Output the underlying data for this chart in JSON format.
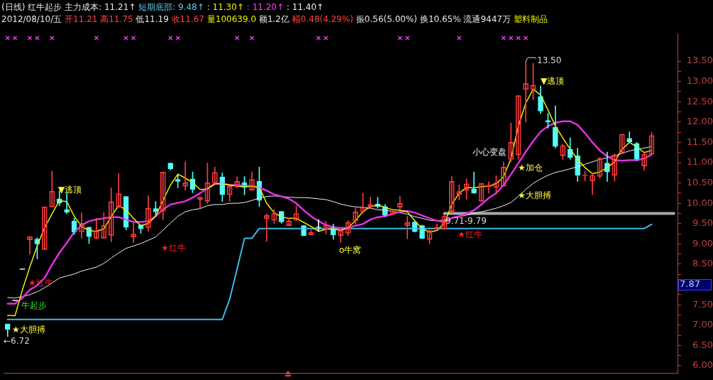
{
  "chart_data": {
    "type": "candlestick",
    "title": "(日线) 红牛起步 主力成本: 11.21↑ 短期底部: 9.48↑ : 11.30↑ : 11.20↑ : 11.40↑",
    "subtitle": "2012/08/10/五 开11.21 高11.75 低11.19 收11.67 量100639.0 额1.2亿 幅0.48(4.29%) 振0.56(5.00%) 换10.65% 流通9447万 塑料制品",
    "categories": [
      null,
      null,
      null,
      null,
      null,
      null,
      null,
      null,
      null,
      null,
      null,
      null,
      null,
      null,
      null,
      null,
      null,
      null,
      null,
      null,
      null,
      null,
      null,
      null,
      null,
      null,
      null,
      null,
      null,
      null,
      null,
      null,
      null,
      null,
      null,
      null,
      null,
      null,
      null,
      null,
      null,
      null,
      null,
      null,
      null,
      null,
      null,
      null,
      null,
      null,
      null,
      null,
      null,
      null,
      null,
      null,
      null,
      null,
      null,
      null,
      null,
      null,
      null,
      null,
      null,
      null,
      null,
      null,
      null,
      null,
      null,
      null,
      null,
      null,
      null,
      null,
      null,
      null,
      null,
      null,
      null,
      null,
      null,
      null,
      null,
      null,
      null,
      null,
      null,
      null,
      null
    ],
    "ohlc": [
      [
        7.03,
        7.03,
        6.72,
        6.89
      ],
      [
        7.6,
        7.6,
        7.6,
        7.6
      ],
      [
        8.37,
        8.37,
        8.37,
        8.37
      ],
      [
        9.1,
        9.18,
        8.75,
        9.18
      ],
      [
        9.12,
        9.15,
        8.63,
        9.0
      ],
      [
        8.86,
        9.91,
        8.86,
        9.91
      ],
      [
        9.91,
        10.79,
        9.91,
        10.3
      ],
      [
        10.11,
        10.31,
        9.94,
        10.0
      ],
      [
        9.84,
        10.25,
        9.74,
        9.78
      ],
      [
        9.56,
        9.63,
        9.23,
        9.29
      ],
      [
        9.3,
        9.77,
        9.14,
        9.51
      ],
      [
        9.41,
        9.41,
        9.01,
        9.18
      ],
      [
        9.14,
        9.63,
        9.12,
        9.31
      ],
      [
        9.14,
        9.77,
        9.14,
        9.46
      ],
      [
        9.21,
        10.38,
        9.05,
        10.04
      ],
      [
        9.9,
        10.73,
        9.9,
        10.24
      ],
      [
        10.17,
        10.17,
        9.35,
        9.41
      ],
      [
        9.17,
        9.51,
        9.03,
        9.24
      ],
      [
        9.47,
        9.47,
        9.26,
        9.37
      ],
      [
        9.4,
        10.19,
        9.31,
        9.88
      ],
      [
        9.87,
        10.04,
        9.68,
        9.79
      ],
      [
        9.81,
        10.77,
        9.6,
        10.77
      ],
      [
        10.99,
        10.99,
        10.82,
        10.85
      ],
      [
        10.59,
        10.71,
        10.38,
        10.54
      ],
      [
        10.42,
        11.02,
        10.32,
        10.51
      ],
      [
        10.6,
        10.77,
        10.26,
        10.34
      ],
      [
        10.09,
        10.15,
        9.88,
        10.15
      ],
      [
        10.05,
        10.99,
        9.99,
        10.51
      ],
      [
        10.49,
        10.89,
        10.49,
        10.76
      ],
      [
        10.65,
        10.75,
        10.04,
        10.21
      ],
      [
        10.21,
        10.42,
        10.05,
        10.42
      ],
      [
        10.42,
        10.65,
        10.38,
        10.54
      ],
      [
        10.51,
        10.66,
        10.21,
        10.39
      ],
      [
        10.32,
        10.77,
        10.32,
        10.59
      ],
      [
        10.54,
        10.89,
        9.92,
        10.07
      ],
      [
        9.62,
        9.74,
        9.06,
        9.7
      ],
      [
        9.58,
        9.85,
        9.5,
        9.75
      ],
      [
        9.8,
        9.8,
        9.51,
        9.54
      ],
      [
        9.45,
        9.63,
        9.45,
        9.57
      ],
      [
        9.58,
        9.94,
        9.57,
        9.75
      ],
      [
        9.45,
        9.45,
        9.2,
        9.2
      ],
      [
        9.22,
        9.34,
        9.22,
        9.28
      ],
      [
        9.4,
        9.6,
        9.31,
        9.4
      ],
      [
        9.36,
        9.56,
        9.24,
        9.46
      ],
      [
        9.43,
        9.49,
        9.11,
        9.22
      ],
      [
        9.2,
        9.37,
        9.03,
        9.33
      ],
      [
        9.26,
        9.58,
        9.2,
        9.53
      ],
      [
        9.57,
        9.88,
        9.49,
        9.79
      ],
      [
        9.79,
        10.25,
        9.74,
        9.9
      ],
      [
        9.92,
        10.15,
        9.88,
        9.97
      ],
      [
        9.98,
        10.15,
        9.88,
        9.92
      ],
      [
        9.92,
        9.97,
        9.68,
        9.7
      ],
      [
        9.73,
        9.85,
        9.73,
        9.81
      ],
      [
        9.9,
        10.17,
        9.85,
        10.0
      ],
      [
        9.45,
        9.68,
        9.12,
        9.53
      ],
      [
        9.54,
        9.57,
        9.29,
        9.3
      ],
      [
        9.45,
        9.46,
        9.13,
        9.13
      ],
      [
        9.11,
        9.34,
        9.0,
        9.33
      ],
      [
        9.37,
        9.49,
        9.37,
        9.41
      ],
      [
        9.37,
        9.72,
        9.35,
        9.68
      ],
      [
        9.8,
        10.66,
        9.77,
        10.54
      ],
      [
        10.22,
        10.45,
        10.08,
        10.29
      ],
      [
        10.32,
        10.6,
        10.09,
        10.48
      ],
      [
        10.35,
        10.77,
        10.24,
        10.25
      ],
      [
        10.05,
        10.49,
        10.05,
        10.49
      ],
      [
        10.41,
        10.53,
        10.25,
        10.45
      ],
      [
        10.39,
        10.68,
        10.22,
        10.51
      ],
      [
        10.42,
        11.02,
        10.42,
        10.89
      ],
      [
        11.08,
        11.98,
        11.02,
        11.5
      ],
      [
        11.19,
        12.65,
        11.08,
        12.65
      ],
      [
        12.8,
        13.5,
        12.0,
        12.95
      ],
      [
        12.8,
        13.45,
        12.55,
        12.91
      ],
      [
        12.63,
        12.89,
        12.21,
        12.27
      ],
      [
        12.04,
        12.21,
        11.85,
        12.0
      ],
      [
        11.87,
        12.4,
        11.36,
        11.4
      ],
      [
        11.17,
        11.46,
        11.08,
        11.42
      ],
      [
        11.33,
        11.61,
        11.08,
        11.13
      ],
      [
        11.17,
        11.36,
        10.54,
        10.69
      ],
      [
        10.68,
        10.79,
        10.55,
        10.69
      ],
      [
        10.55,
        10.73,
        10.21,
        10.69
      ],
      [
        10.66,
        11.13,
        10.62,
        11.11
      ],
      [
        10.99,
        11.26,
        10.54,
        10.77
      ],
      [
        10.69,
        11.22,
        10.54,
        11.19
      ],
      [
        11.25,
        11.7,
        11.25,
        11.7
      ],
      [
        11.6,
        11.76,
        11.49,
        11.51
      ],
      [
        11.47,
        11.5,
        11.05,
        11.08
      ],
      [
        10.92,
        11.23,
        10.81,
        11.21
      ],
      [
        11.21,
        11.75,
        11.19,
        11.67
      ],
      null,
      null,
      null
    ],
    "colors": [
      "#54fcfc",
      "#ffffff",
      "#ffffff",
      "#ff3c3c",
      "#54fcfc",
      "#ff3c3c",
      "#ff3c3c",
      "#54fcfc",
      "#54fcfc",
      "#54fcfc",
      "#ff3c3c",
      "#54fcfc",
      "#ff3c3c",
      "#ff3c3c",
      "#ff3c3c",
      "#ff3c3c",
      "#54fcfc",
      "#ff3c3c",
      "#54fcfc",
      "#ff3c3c",
      "#54fcfc",
      "#ff3c3c",
      "#54fcfc",
      "#54fcfc",
      "#ff3c3c",
      "#54fcfc",
      "#ff3c3c",
      "#ff3c3c",
      "#ff3c3c",
      "#54fcfc",
      "#ff3c3c",
      "#ff3c3c",
      "#54fcfc",
      "#ff3c3c",
      "#54fcfc",
      "#ff3c3c",
      "#ff3c3c",
      "#54fcfc",
      "#ff3c3c",
      "#ff3c3c",
      "#54fcfc",
      "#ff3c3c",
      "#ffffff",
      "#ff3c3c",
      "#54fcfc",
      "#ff3c3c",
      "#ff3c3c",
      "#ff3c3c",
      "#ff3c3c",
      "#ff3c3c",
      "#54fcfc",
      "#54fcfc",
      "#ff3c3c",
      "#ff3c3c",
      "#ff3c3c",
      "#54fcfc",
      "#54fcfc",
      "#ff3c3c",
      "#ff3c3c",
      "#ff3c3c",
      "#ff3c3c",
      "#ff3c3c",
      "#ff3c3c",
      "#54fcfc",
      "#ff3c3c",
      "#ff3c3c",
      "#ff3c3c",
      "#ff3c3c",
      "#ff3c3c",
      "#ff3c3c",
      "#ff3c3c",
      "#ff3c3c",
      "#54fcfc",
      "#54fcfc",
      "#54fcfc",
      "#ff3c3c",
      "#54fcfc",
      "#54fcfc",
      "#ff3c3c",
      "#ff3c3c",
      "#ff3c3c",
      "#54fcfc",
      "#ff3c3c",
      "#ff3c3c",
      "#54fcfc",
      "#54fcfc",
      "#ff3c3c",
      "#ff3c3c",
      null,
      null,
      null
    ],
    "series": [
      {
        "type": "line",
        "color": "#f0f000",
        "values": [
          7.24,
          7.23,
          7.87,
          8.43,
          8.95,
          9.4,
          9.74,
          10.07,
          10.04,
          9.68,
          9.43,
          9.33,
          9.31,
          9.37,
          9.68,
          9.94,
          9.84,
          9.63,
          9.45,
          9.5,
          9.68,
          10.07,
          10.45,
          10.72,
          10.62,
          10.51,
          10.34,
          10.35,
          10.48,
          10.48,
          10.45,
          10.42,
          10.41,
          10.42,
          10.39,
          10.0,
          9.77,
          9.66,
          9.63,
          9.63,
          9.53,
          9.43,
          9.31,
          9.36,
          9.37,
          9.33,
          9.4,
          9.57,
          9.8,
          9.91,
          9.96,
          9.9,
          9.84,
          9.83,
          9.79,
          9.57,
          9.37,
          9.29,
          9.33,
          9.51,
          9.97,
          10.25,
          10.39,
          10.38,
          10.41,
          10.42,
          10.48,
          10.65,
          11.1,
          11.9,
          12.47,
          12.81,
          12.67,
          12.3,
          11.9,
          11.61,
          11.33,
          11.08,
          10.88,
          10.73,
          10.77,
          10.88,
          11.02,
          11.33,
          11.5,
          11.39,
          11.25,
          11.3,
          null,
          null,
          null
        ]
      },
      {
        "type": "line",
        "color": "#e030e0",
        "values": [
          7.53,
          7.53,
          7.67,
          7.87,
          7.98,
          8.16,
          8.49,
          8.78,
          9.03,
          9.29,
          9.46,
          9.56,
          9.6,
          9.63,
          9.66,
          9.66,
          9.6,
          9.54,
          9.54,
          9.56,
          9.68,
          9.85,
          9.97,
          10.01,
          10.05,
          10.14,
          10.25,
          10.37,
          10.48,
          10.49,
          10.45,
          10.45,
          10.43,
          10.43,
          10.39,
          10.31,
          10.22,
          10.17,
          10.11,
          10.0,
          9.83,
          9.68,
          9.56,
          9.47,
          9.41,
          9.39,
          9.4,
          9.45,
          9.49,
          9.6,
          9.66,
          9.68,
          9.74,
          9.79,
          9.81,
          9.77,
          9.7,
          9.63,
          9.57,
          9.54,
          9.64,
          9.68,
          9.74,
          9.83,
          9.97,
          10.13,
          10.25,
          10.45,
          10.71,
          10.99,
          11.27,
          11.53,
          11.76,
          11.9,
          11.98,
          12.02,
          12.02,
          11.93,
          11.73,
          11.5,
          11.3,
          11.16,
          11.06,
          11.05,
          11.06,
          11.06,
          11.1,
          11.2,
          null,
          null,
          null
        ]
      },
      {
        "type": "line",
        "color": "#f0f0f0",
        "values": [
          7.68,
          7.67,
          7.7,
          7.75,
          7.82,
          7.92,
          8.04,
          8.16,
          8.21,
          8.26,
          8.33,
          8.38,
          8.43,
          8.52,
          8.65,
          8.78,
          8.89,
          8.95,
          9.01,
          9.09,
          9.17,
          9.34,
          9.51,
          9.68,
          9.79,
          9.84,
          9.87,
          9.94,
          9.97,
          9.97,
          10.0,
          10.0,
          10.02,
          10.07,
          10.13,
          10.17,
          10.18,
          10.17,
          10.15,
          10.14,
          10.14,
          10.13,
          10.11,
          10.09,
          10.04,
          9.98,
          9.94,
          9.91,
          9.9,
          9.88,
          9.84,
          9.83,
          9.8,
          9.77,
          9.73,
          9.67,
          9.63,
          9.58,
          9.57,
          9.59,
          9.63,
          9.67,
          9.71,
          9.75,
          9.79,
          9.83,
          9.88,
          9.94,
          10.02,
          10.17,
          10.34,
          10.49,
          10.6,
          10.69,
          10.76,
          10.8,
          10.85,
          10.9,
          10.96,
          11.02,
          11.08,
          11.12,
          11.17,
          11.23,
          11.29,
          11.33,
          11.36,
          11.4,
          null,
          null,
          null
        ]
      },
      {
        "type": "line",
        "color": "#40b8e8",
        "values": [
          7.14,
          7.14,
          7.14,
          7.14,
          7.14,
          7.14,
          7.14,
          7.14,
          7.14,
          7.14,
          7.14,
          7.14,
          7.14,
          7.14,
          7.14,
          7.14,
          7.14,
          7.14,
          7.14,
          7.14,
          7.14,
          7.14,
          7.14,
          7.14,
          7.14,
          7.14,
          7.14,
          7.14,
          7.14,
          7.14,
          7.64,
          8.38,
          9.14,
          9.14,
          9.38,
          9.38,
          9.38,
          9.38,
          9.38,
          9.38,
          9.38,
          9.38,
          9.38,
          9.38,
          9.38,
          9.38,
          9.38,
          9.38,
          9.38,
          9.38,
          9.38,
          9.38,
          9.38,
          9.38,
          9.38,
          9.38,
          9.38,
          9.38,
          9.38,
          9.38,
          9.38,
          9.38,
          9.38,
          9.38,
          9.38,
          9.38,
          9.38,
          9.38,
          9.38,
          9.38,
          9.38,
          9.38,
          9.38,
          9.38,
          9.38,
          9.38,
          9.38,
          9.38,
          9.38,
          9.38,
          9.38,
          9.38,
          9.38,
          9.38,
          9.38,
          9.38,
          9.38,
          9.48,
          null,
          null,
          null
        ]
      },
      {
        "type": "line",
        "color": "#a8a8a8",
        "values": [
          null,
          null,
          null,
          null,
          null,
          null,
          null,
          null,
          null,
          null,
          null,
          null,
          null,
          null,
          null,
          null,
          null,
          null,
          null,
          null,
          null,
          null,
          null,
          null,
          null,
          null,
          null,
          null,
          null,
          null,
          null,
          null,
          null,
          null,
          null,
          null,
          null,
          null,
          null,
          null,
          null,
          null,
          null,
          null,
          null,
          null,
          null,
          null,
          null,
          null,
          null,
          null,
          null,
          null,
          null,
          null,
          null,
          null,
          null,
          9.75,
          9.75,
          9.75,
          9.75,
          9.75,
          9.75,
          9.75,
          9.75,
          9.75,
          9.75,
          9.75,
          9.75,
          9.75,
          9.75,
          9.75,
          9.75,
          9.75,
          9.75,
          9.75,
          9.75,
          9.75,
          9.75,
          9.75,
          9.75,
          9.75,
          9.75,
          9.75,
          9.75,
          9.75,
          9.75,
          9.75,
          9.75
        ]
      },
      {
        "type": "scatter",
        "color": "#e040e0",
        "marker": "cross",
        "values": [
          14.07,
          14.07,
          null,
          14.07,
          14.07,
          null,
          14.07,
          null,
          null,
          null,
          null,
          null,
          14.07,
          null,
          null,
          null,
          14.07,
          14.07,
          null,
          null,
          null,
          null,
          14.07,
          14.07,
          null,
          null,
          null,
          null,
          null,
          null,
          null,
          14.07,
          null,
          14.07,
          null,
          null,
          null,
          null,
          null,
          null,
          null,
          null,
          14.07,
          14.07,
          null,
          null,
          null,
          null,
          null,
          null,
          null,
          null,
          null,
          14.07,
          14.07,
          null,
          null,
          null,
          null,
          null,
          null,
          14.07,
          null,
          null,
          null,
          null,
          null,
          14.07,
          14.07,
          14.07,
          14.07,
          null,
          null,
          null,
          null,
          null,
          null,
          null,
          null,
          null,
          null,
          null,
          null,
          null,
          null,
          null,
          null,
          null,
          null,
          null,
          null
        ]
      }
    ],
    "ylim": [
      5.82,
      14.17
    ],
    "yticks": [
      {
        "value": 6,
        "label": "6.00"
      },
      {
        "value": 6.25,
        "label": null
      },
      {
        "value": 6.5,
        "label": "6.50"
      },
      {
        "value": 6.75,
        "label": null
      },
      {
        "value": 7,
        "label": "7.00"
      },
      {
        "value": 7.25,
        "label": null
      },
      {
        "value": 7.5,
        "label": "7.50"
      },
      {
        "value": 7.75,
        "label": null
      },
      {
        "value": 8,
        "label": null
      },
      {
        "value": 8.25,
        "label": null
      },
      {
        "value": 8.5,
        "label": "8.50"
      },
      {
        "value": 8.75,
        "label": null
      },
      {
        "value": 9,
        "label": "9.00"
      },
      {
        "value": 9.25,
        "label": null
      },
      {
        "value": 9.5,
        "label": "9.50"
      },
      {
        "value": 9.75,
        "label": null
      },
      {
        "value": 10,
        "label": "10.00"
      },
      {
        "value": 10.25,
        "label": null
      },
      {
        "value": 10.5,
        "label": "10.50"
      },
      {
        "value": 10.75,
        "label": null
      },
      {
        "value": 11,
        "label": "11.00"
      },
      {
        "value": 11.25,
        "label": null
      },
      {
        "value": 11.5,
        "label": "11.50"
      },
      {
        "value": 11.75,
        "label": null
      },
      {
        "value": 12,
        "label": "12.00"
      },
      {
        "value": 12.25,
        "label": null
      },
      {
        "value": 12.5,
        "label": "12.50"
      },
      {
        "value": 12.75,
        "label": null
      },
      {
        "value": 13,
        "label": "13.00"
      },
      {
        "value": 13.25,
        "label": null
      },
      {
        "value": 13.5,
        "label": "13.50"
      }
    ],
    "tick_labels": "y",
    "grid": false,
    "legend": false,
    "annotations": [
      "▼逃顶",
      "★红牛",
      "牛起步",
      "★大胆搏",
      "←6.72",
      "★红牛",
      "o牛窝",
      "9.71-9.79",
      "★红牛",
      "小心变盘",
      "★加仓",
      "★大胆搏",
      "▼逃顶",
      "13.50",
      "7.87"
    ]
  }
}
